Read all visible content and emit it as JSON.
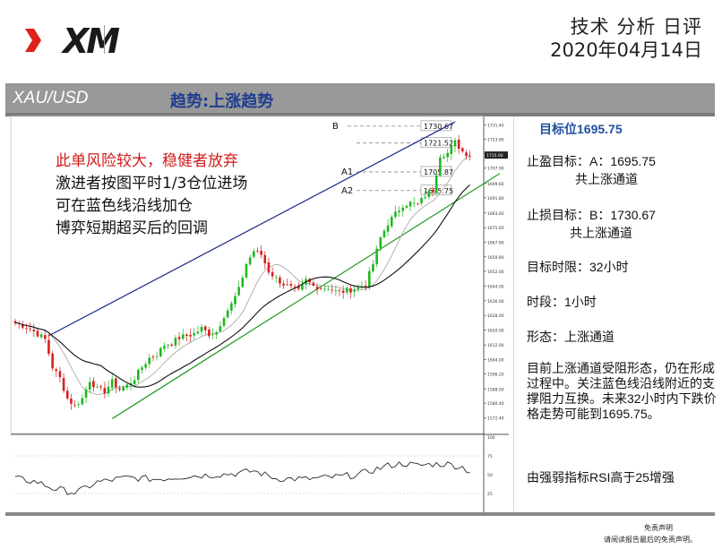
{
  "header": {
    "logo_text": "XM",
    "title": "技术 分析 日评",
    "date": "2020年04月14日"
  },
  "band": {
    "symbol": "XAU/USD",
    "trend": "趋势:上涨趋势"
  },
  "annotations": {
    "warning": "此单风险较大，稳健者放弃",
    "lines": [
      "激进者按图平时1/3仓位进场",
      "可在蓝色线沿线加仓",
      "博弈短期超买后的回调"
    ]
  },
  "sidebar": {
    "target_title": "目标位1695.75",
    "take_profit_label": "止盈目标：A：1695.75",
    "take_profit_note": "共上涨通道",
    "stop_loss_label": "止损目标：B：1730.67",
    "stop_loss_note": "共上涨通道",
    "time_limit": "目标时限：32小时",
    "timeframe": "时段：1小时",
    "pattern": "形态：上涨通道",
    "analysis": "目前上涨通道受阻形态，仍在形成过程中。关注蓝色线沿线附近的支撑阻力互换。未来32小时内下跌价格走势可能到1695.75。",
    "rsi_note": "由强弱指标RSI高于25增强"
  },
  "disclaimer": {
    "line1": "免责声明",
    "line2": "请阅读报告最后的免责声明。"
  },
  "chart_data": {
    "type": "candlestick",
    "ylim": [
      1564,
      1734
    ],
    "y_ticks": [
      1731.4,
      1723.6,
      1715.8,
      1707.9,
      1699.6,
      1691.8,
      1683.6,
      1675.6,
      1667.8,
      1659.8,
      1652.0,
      1644.0,
      1636.0,
      1628.0,
      1620.0,
      1612.0,
      1604.0,
      1596.2,
      1588.0,
      1580.4,
      1572.4
    ],
    "y_tick_labels": [
      "1731.40",
      "1723.60",
      "1715.80",
      "1707.90",
      "1699.60",
      "1691.80",
      "1683.60",
      "1675.60",
      "1667.80",
      "1659.80",
      "1652.00",
      "1644.00",
      "1636.00",
      "1628.00",
      "1620.00",
      "1612.00",
      "1604.00",
      "1596.20",
      "1588.00",
      "1580.40",
      "1572.40"
    ],
    "current_price": 1715.0,
    "levels": [
      {
        "name": "B",
        "value": 1730.67,
        "label": "1730.67"
      },
      {
        "name": "",
        "value": 1721.52,
        "label": "1721.52"
      },
      {
        "name": "A1",
        "value": 1705.87,
        "label": "1705.87"
      },
      {
        "name": "A2",
        "value": 1695.75,
        "label": "1695.75"
      }
    ],
    "channel_upper": [
      [
        9,
        1617
      ],
      [
        118,
        1733
      ]
    ],
    "channel_lower": [
      [
        26,
        1572
      ],
      [
        130,
        1705
      ]
    ],
    "close_anchors": [
      [
        0,
        1624
      ],
      [
        3,
        1622
      ],
      [
        6,
        1618
      ],
      [
        8,
        1615
      ],
      [
        10,
        1600
      ],
      [
        12,
        1594
      ],
      [
        14,
        1583
      ],
      [
        16,
        1579
      ],
      [
        18,
        1583
      ],
      [
        20,
        1593
      ],
      [
        22,
        1588
      ],
      [
        24,
        1587
      ],
      [
        26,
        1592
      ],
      [
        28,
        1588
      ],
      [
        30,
        1590
      ],
      [
        32,
        1594
      ],
      [
        34,
        1600
      ],
      [
        36,
        1605
      ],
      [
        38,
        1607
      ],
      [
        40,
        1612
      ],
      [
        42,
        1613
      ],
      [
        44,
        1616
      ],
      [
        46,
        1617
      ],
      [
        48,
        1618
      ],
      [
        50,
        1621
      ],
      [
        52,
        1618
      ],
      [
        54,
        1619
      ],
      [
        56,
        1628
      ],
      [
        58,
        1634
      ],
      [
        60,
        1642
      ],
      [
        62,
        1656
      ],
      [
        64,
        1663
      ],
      [
        66,
        1661
      ],
      [
        68,
        1652
      ],
      [
        70,
        1648
      ],
      [
        72,
        1645
      ],
      [
        74,
        1643
      ],
      [
        76,
        1641
      ],
      [
        78,
        1647
      ],
      [
        80,
        1644
      ],
      [
        82,
        1643
      ],
      [
        84,
        1643
      ],
      [
        86,
        1641
      ],
      [
        88,
        1641
      ],
      [
        90,
        1642
      ],
      [
        92,
        1643
      ],
      [
        94,
        1645
      ],
      [
        96,
        1656
      ],
      [
        98,
        1670
      ],
      [
        100,
        1678
      ],
      [
        102,
        1683
      ],
      [
        104,
        1688
      ],
      [
        106,
        1689
      ],
      [
        108,
        1688
      ],
      [
        110,
        1693
      ],
      [
        112,
        1696
      ],
      [
        114,
        1715
      ],
      [
        116,
        1716
      ],
      [
        118,
        1722
      ],
      [
        120,
        1717
      ],
      [
        122,
        1715
      ]
    ],
    "rsi": {
      "ylim": [
        0,
        100
      ],
      "ticks": [
        100,
        75,
        50,
        25
      ],
      "anchors": [
        [
          0,
          45
        ],
        [
          6,
          40
        ],
        [
          10,
          32
        ],
        [
          14,
          28
        ],
        [
          16,
          26
        ],
        [
          18,
          30
        ],
        [
          22,
          40
        ],
        [
          30,
          46
        ],
        [
          38,
          44
        ],
        [
          46,
          48
        ],
        [
          54,
          50
        ],
        [
          60,
          52
        ],
        [
          64,
          55
        ],
        [
          70,
          45
        ],
        [
          78,
          44
        ],
        [
          86,
          47
        ],
        [
          92,
          50
        ],
        [
          96,
          56
        ],
        [
          100,
          62
        ],
        [
          104,
          65
        ],
        [
          108,
          62
        ],
        [
          112,
          64
        ],
        [
          116,
          64
        ],
        [
          120,
          60
        ],
        [
          122,
          54
        ]
      ]
    },
    "colors": {
      "bull": "#1fb81f",
      "bear": "#d81e1e",
      "channel_upper": "#1a2a8c",
      "channel_lower": "#1f9a1f",
      "ma_slow": "#111111",
      "ma_fast": "#aaaaaa"
    }
  }
}
